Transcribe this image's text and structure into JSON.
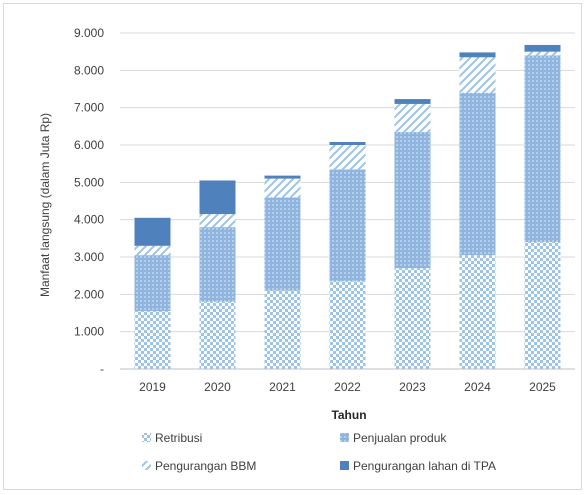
{
  "chart_data": {
    "type": "bar",
    "stacked": true,
    "title": "",
    "xlabel": "Tahun",
    "ylabel": "Manfaat langsung (dalam Juta Rp)",
    "ylim": [
      0,
      9000
    ],
    "y_ticks": [
      {
        "value": 0,
        "label": "-"
      },
      {
        "value": 1000,
        "label": "1.000"
      },
      {
        "value": 2000,
        "label": "2.000"
      },
      {
        "value": 3000,
        "label": "3.000"
      },
      {
        "value": 4000,
        "label": "4.000"
      },
      {
        "value": 5000,
        "label": "5.000"
      },
      {
        "value": 6000,
        "label": "6.000"
      },
      {
        "value": 7000,
        "label": "7.000"
      },
      {
        "value": 8000,
        "label": "8.000"
      },
      {
        "value": 9000,
        "label": "9.000"
      }
    ],
    "grid": true,
    "legend_position": "bottom",
    "categories": [
      "2019",
      "2020",
      "2021",
      "2022",
      "2023",
      "2024",
      "2025"
    ],
    "series": [
      {
        "name": "Retribusi",
        "color": "#9dc3e6",
        "pattern": "small-checker",
        "values": [
          1550,
          1800,
          2100,
          2350,
          2700,
          3050,
          3400
        ]
      },
      {
        "name": "Penjualan produk",
        "color": "#9dc3e6",
        "pattern": "dense-dots",
        "values": [
          1500,
          2000,
          2500,
          3000,
          3650,
          4350,
          5000
        ]
      },
      {
        "name": "Pengurangan BBM",
        "color": "#c5d9f1",
        "pattern": "wide-diagonal",
        "values": [
          250,
          350,
          500,
          650,
          750,
          950,
          100
        ]
      },
      {
        "name": "Pengurangan lahan di TPA",
        "color": "#4f81bd",
        "pattern": "solid",
        "values": [
          750,
          900,
          80,
          80,
          130,
          130,
          180
        ]
      }
    ]
  }
}
